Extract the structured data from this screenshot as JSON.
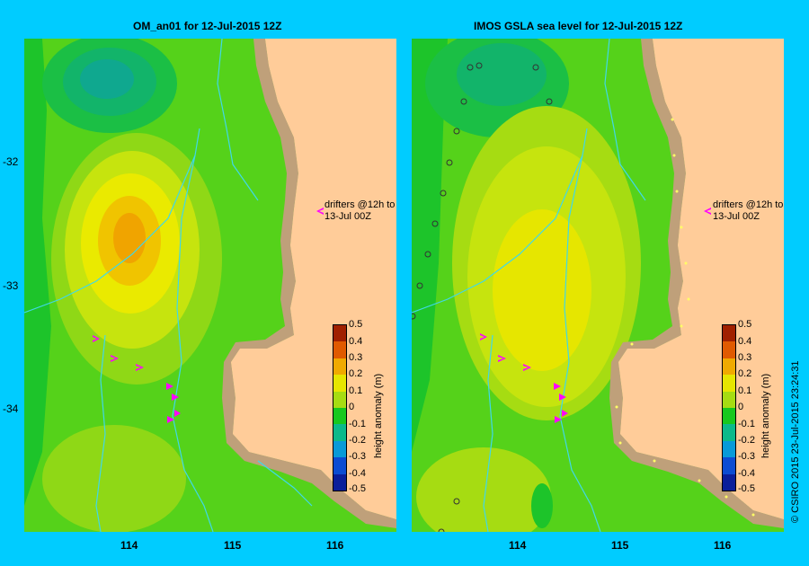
{
  "left": {
    "title": "OM_an01  for 12-Jul-2015 12Z",
    "annotation": [
      "drifters @12h to",
      "13-Jul 00Z"
    ],
    "colorbar_title": "height anomaly (m)"
  },
  "right": {
    "title": "IMOS GSLA sea level  for 12-Jul-2015 12Z",
    "annotation": [
      "drifters @12h to",
      "13-Jul 00Z"
    ],
    "colorbar_title": "height anomaly (m)"
  },
  "lat_labels": [
    "-32",
    "-33",
    "-34"
  ],
  "lon_labels": [
    "114",
    "115",
    "116"
  ],
  "colorbar_ticks": [
    "0.5",
    "0.4",
    "0.3",
    "0.2",
    "0.1",
    "0",
    "-0.1",
    "-0.2",
    "-0.3",
    "-0.4",
    "-0.5"
  ],
  "colorbar_colors": [
    "#0a0a5a",
    "#0a1e9a",
    "#0c4cd2",
    "#079ad8",
    "#0bb98a",
    "#17c81e",
    "#a6dc12",
    "#e6e600",
    "#f0aa00",
    "#e05a00",
    "#a02000"
  ],
  "credit": "© CSIRO 2015   23-Jul-2015 23:24:31",
  "colors": {
    "background": "#00ccff",
    "land": "#ffcc99",
    "shelf": "#bfa07a",
    "drifter": "#ff00ff",
    "river": "#40d8e8"
  }
}
